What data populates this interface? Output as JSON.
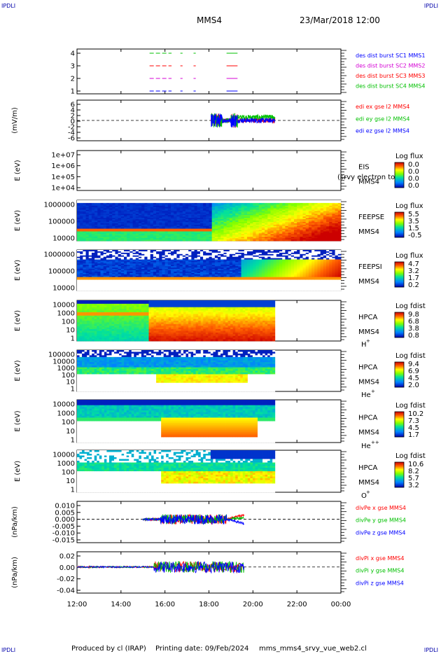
{
  "header": {
    "corner_label": "IPDLI",
    "spacecraft": "MMS4",
    "datetime": "23/Mar/2018 12:00"
  },
  "footer": {
    "credit": "Produced by cl (IRAP)",
    "printing_date": "Printing date: 09/Feb/2024",
    "script_name": "mms_mms4_srvy_vue_web2.cl"
  },
  "chart_data": {
    "type": "multi-panel",
    "time_axis": {
      "ticks": [
        "12:00",
        "14:00",
        "16:00",
        "18:00",
        "20:00",
        "22:00",
        "00:00"
      ],
      "range_hours": [
        12,
        24
      ]
    },
    "panels": [
      {
        "id": "burst",
        "type": "timeline",
        "ylabel": "",
        "yticks": [
          "4",
          "3",
          "2",
          "1"
        ],
        "legend": [
          {
            "label": "des dist burst SC1 MMS1",
            "color": "#0000ff"
          },
          {
            "label": "des dist burst SC2 MMS2",
            "color": "#d400d4"
          },
          {
            "label": "des dist burst SC3 MMS3",
            "color": "#ff0000"
          },
          {
            "label": "des dist burst SC4 MMS4",
            "color": "#00c000"
          }
        ],
        "rows": [
          {
            "level": 4,
            "color": "#00c000",
            "intervals": [
              [
                15.3,
                16.3
              ],
              [
                16.7,
                16.8
              ],
              [
                17.3,
                17.4
              ],
              [
                18.8,
                19.3
              ]
            ]
          },
          {
            "level": 3,
            "color": "#ff0000",
            "intervals": [
              [
                15.3,
                16.3
              ],
              [
                16.7,
                16.8
              ],
              [
                17.3,
                17.4
              ],
              [
                18.8,
                19.3
              ]
            ]
          },
          {
            "level": 2,
            "color": "#d400d4",
            "intervals": [
              [
                15.3,
                16.3
              ],
              [
                16.7,
                16.8
              ],
              [
                17.3,
                17.4
              ],
              [
                18.8,
                19.3
              ]
            ]
          },
          {
            "level": 1,
            "color": "#0000ff",
            "intervals": [
              [
                15.3,
                16.3
              ],
              [
                16.7,
                16.8
              ],
              [
                17.3,
                17.4
              ],
              [
                18.8,
                19.3
              ]
            ]
          }
        ]
      },
      {
        "id": "edi",
        "type": "line",
        "ylabel": "(mV/m)",
        "yticks": [
          "6",
          "4",
          "2",
          "0",
          "-2",
          "-4",
          "-6"
        ],
        "ylim": [
          -6,
          6
        ],
        "legend": [
          {
            "label": "edi ex gse l2 MMS4",
            "color": "#ff0000"
          },
          {
            "label": "edi ey gse l2 MMS4",
            "color": "#00c000"
          },
          {
            "label": "edi ez gse l2 MMS4",
            "color": "#0000ff"
          }
        ],
        "data_range_hours": [
          18.1,
          21.0
        ]
      },
      {
        "id": "eis",
        "type": "spectrogram",
        "ylabel": "E (eV)",
        "yticks": [
          "1e+07",
          "1e+06",
          "1e+05",
          "1e+04"
        ],
        "instrument": "EIS",
        "sc": "MMS4",
        "extra_label": "(srvy electron to",
        "cb_title": "Log flux",
        "cb_labels": [
          "0.0",
          "0.0",
          "0.0",
          "0.0"
        ]
      },
      {
        "id": "feepse",
        "type": "spectrogram",
        "ylabel": "E (eV)",
        "yticks": [
          "1000000",
          "100000",
          "10000"
        ],
        "instrument": "FEEPSE",
        "sc": "MMS4",
        "cb_title": "Log flux",
        "cb_labels": [
          "5.5",
          "3.5",
          "1.5",
          "-0.5"
        ]
      },
      {
        "id": "feepsi",
        "type": "spectrogram",
        "ylabel": "E (eV)",
        "yticks": [
          "1000000",
          "100000",
          "10000"
        ],
        "instrument": "FEEPSI",
        "sc": "MMS4",
        "cb_title": "Log flux",
        "cb_labels": [
          "4.7",
          "3.2",
          "1.7",
          "0.2"
        ]
      },
      {
        "id": "hpca_h",
        "type": "spectrogram",
        "ylabel": "E (eV)",
        "yticks": [
          "10000",
          "1000",
          "100",
          "10",
          "1"
        ],
        "instrument": "HPCA",
        "sc": "MMS4",
        "species": "H",
        "species_sup": "+",
        "cb_title": "Log fdist",
        "cb_labels": [
          "9.8",
          "6.8",
          "3.8",
          "0.8"
        ]
      },
      {
        "id": "hpca_he",
        "type": "spectrogram",
        "ylabel": "E (eV)",
        "yticks": [
          "100000",
          "10000",
          "1000",
          "100",
          "10",
          "1"
        ],
        "instrument": "HPCA",
        "sc": "MMS4",
        "species": "He",
        "species_sup": "+",
        "cb_title": "Log fdist",
        "cb_labels": [
          "9.4",
          "6.9",
          "4.5",
          "2.0"
        ]
      },
      {
        "id": "hpca_he2",
        "type": "spectrogram",
        "ylabel": "E (eV)",
        "yticks": [
          "10000",
          "1000",
          "100",
          "10",
          "1"
        ],
        "instrument": "HPCA",
        "sc": "MMS4",
        "species": "He",
        "species_sup": "++",
        "cb_title": "Log fdist",
        "cb_labels": [
          "10.2",
          "7.3",
          "4.5",
          "1.7"
        ]
      },
      {
        "id": "hpca_o",
        "type": "spectrogram",
        "ylabel": "E (eV)",
        "yticks": [
          "10000",
          "1000",
          "100",
          "10",
          "1"
        ],
        "instrument": "HPCA",
        "sc": "MMS4",
        "species": "O",
        "species_sup": "+",
        "cb_title": "Log fdist",
        "cb_labels": [
          "10.6",
          "8.2",
          "5.7",
          "3.2"
        ]
      },
      {
        "id": "divpe",
        "type": "line",
        "ylabel": "(nPa/km)",
        "yticks": [
          "0.010",
          "0.005",
          "0.000",
          "-0.005",
          "-0.010",
          "-0.015"
        ],
        "ylim": [
          -0.017,
          0.013
        ],
        "legend": [
          {
            "label": "divPe x gse MMS4",
            "color": "#ff0000"
          },
          {
            "label": "divPe y gse MMS4",
            "color": "#00c000"
          },
          {
            "label": "divPe z gse MMS4",
            "color": "#0000ff"
          }
        ],
        "data_range_hours": [
          15.0,
          19.6
        ]
      },
      {
        "id": "divpi",
        "type": "line",
        "ylabel": "(nPa/km)",
        "yticks": [
          "0.02",
          "0.00",
          "-0.02",
          "-0.04"
        ],
        "ylim": [
          -0.048,
          0.028
        ],
        "legend": [
          {
            "label": "divPi x gse MMS4",
            "color": "#ff0000"
          },
          {
            "label": "divPi y gse MMS4",
            "color": "#00c000"
          },
          {
            "label": "divPi z gse MMS4",
            "color": "#0000ff"
          }
        ],
        "data_range_hours": [
          12.0,
          19.6
        ]
      }
    ]
  }
}
